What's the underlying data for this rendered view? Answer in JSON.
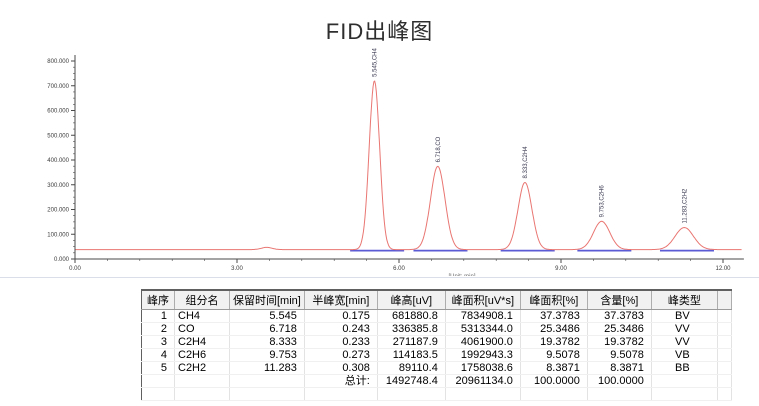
{
  "title": "FID出峰图",
  "chart_data": {
    "type": "line",
    "title": "FID出峰图",
    "xlabel": "[Unit: min]",
    "ylabel": "",
    "grid": false,
    "legend": "none",
    "x_axis": {
      "min": 0,
      "max": 12.35,
      "major_tick": 3,
      "minor_tick": 0.6,
      "tick_labels": [
        "0.00",
        "3.00",
        "6.00",
        "9.00",
        "12.00"
      ]
    },
    "y_axis": {
      "min": 0,
      "max": 800000,
      "major_tick": 100000,
      "minor_tick": 25000,
      "tick_labels": [
        "0.000",
        "100.000",
        "200.000",
        "300.000",
        "400.000",
        "500.000",
        "600.000",
        "700.000",
        "800.000"
      ]
    },
    "baseline_uv": 38000,
    "axis_color": "#4a4a4a",
    "tick_label_color": "#3a3a3a",
    "integration_baseline_color": "#5b5bd6",
    "peak_label_color": "#3a3a52",
    "series": [
      {
        "name": "FID signal",
        "color": "#e97672",
        "peaks": [
          {
            "rt_min": 5.545,
            "height_uv": 681880.8,
            "fwhm_min": 0.175,
            "label": "5.545,CH4"
          },
          {
            "rt_min": 6.718,
            "height_uv": 336385.8,
            "fwhm_min": 0.243,
            "label": "6.718,CO"
          },
          {
            "rt_min": 8.333,
            "height_uv": 271187.9,
            "fwhm_min": 0.233,
            "label": "8.333,C2H4"
          },
          {
            "rt_min": 9.753,
            "height_uv": 114183.5,
            "fwhm_min": 0.273,
            "label": "9.753,C2H6"
          },
          {
            "rt_min": 11.283,
            "height_uv": 89110.4,
            "fwhm_min": 0.308,
            "label": "11.283,C2H2"
          }
        ]
      }
    ],
    "minor_disturbance": {
      "rt_min": 3.55,
      "height_uv": 9000,
      "fwhm_min": 0.18
    }
  },
  "table": {
    "headers": [
      "峰序",
      "组分名",
      "保留时间[min]",
      "半峰宽[min]",
      "峰高[uV]",
      "峰面积[uV*s]",
      "峰面积[%]",
      "含量[%]",
      "峰类型"
    ],
    "rows": [
      [
        "1",
        "CH4",
        "5.545",
        "0.175",
        "681880.8",
        "7834908.1",
        "37.3783",
        "37.3783",
        "BV"
      ],
      [
        "2",
        "CO",
        "6.718",
        "0.243",
        "336385.8",
        "5313344.0",
        "25.3486",
        "25.3486",
        "VV"
      ],
      [
        "3",
        "C2H4",
        "8.333",
        "0.233",
        "271187.9",
        "4061900.0",
        "19.3782",
        "19.3782",
        "VV"
      ],
      [
        "4",
        "C2H6",
        "9.753",
        "0.273",
        "114183.5",
        "1992943.3",
        "9.5078",
        "9.5078",
        "VB"
      ],
      [
        "5",
        "C2H2",
        "11.283",
        "0.308",
        "89110.4",
        "1758038.6",
        "8.3871",
        "8.3871",
        "BB"
      ]
    ],
    "total_row": [
      "",
      "",
      "",
      "总计:",
      "1492748.4",
      "20961134.0",
      "100.0000",
      "100.0000",
      ""
    ]
  }
}
